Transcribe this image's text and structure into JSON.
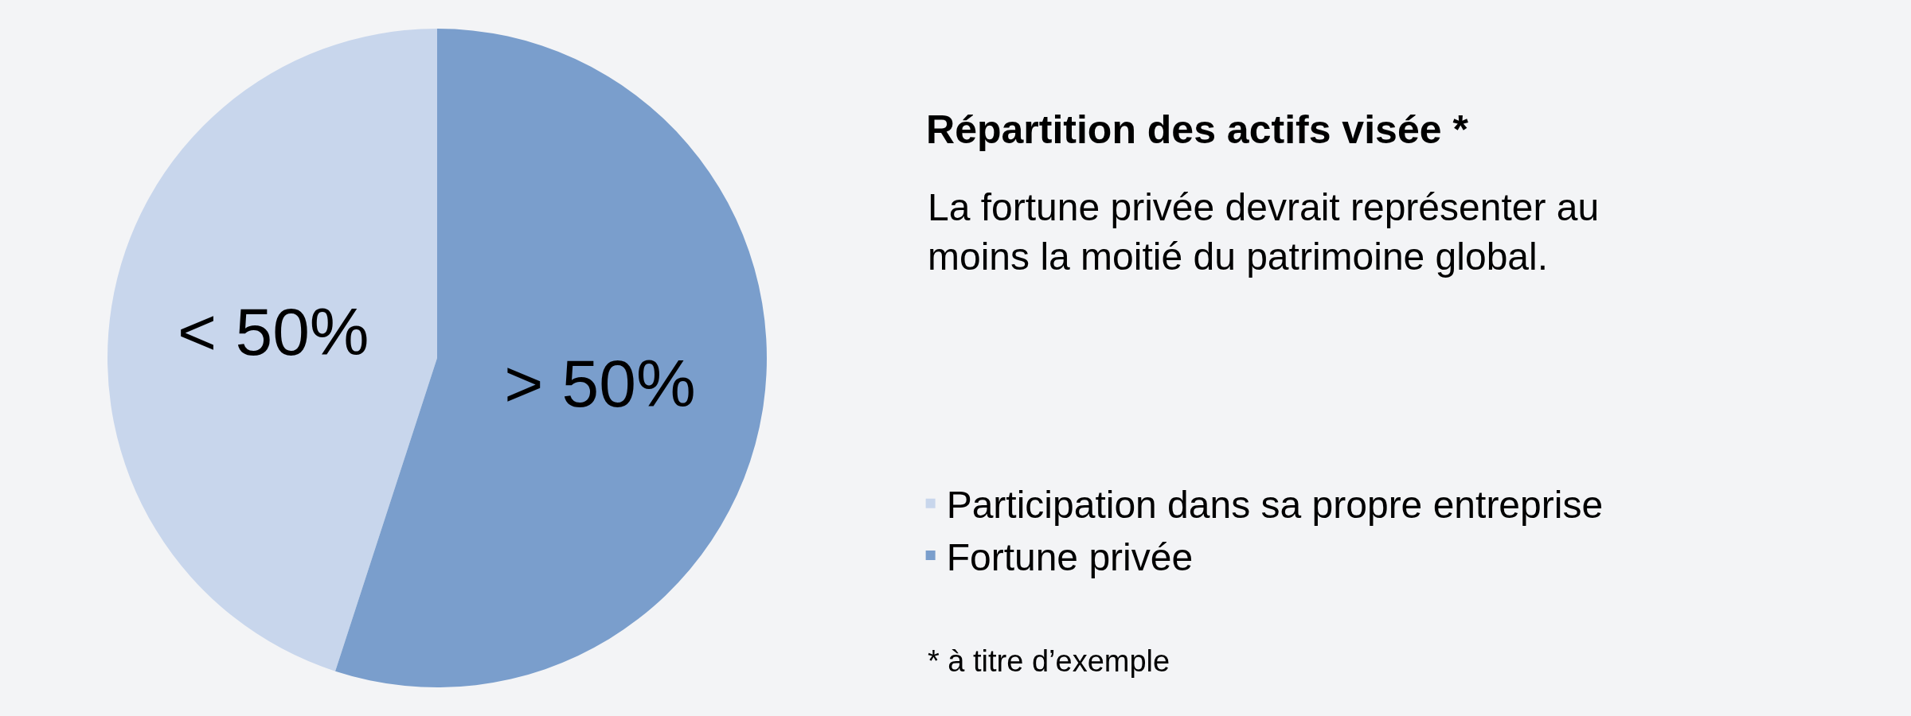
{
  "chart_data": {
    "type": "pie",
    "title": "Répartition des actifs visée *",
    "subtitle": "La fortune privée devrait représenter au moins la moitié du patrimoine global.",
    "categories": [
      "Participation dans sa propre entreprise",
      "Fortune privée"
    ],
    "values": [
      45,
      55
    ],
    "colors": [
      "#c8d6ec",
      "#7a9ecc"
    ],
    "value_labels": [
      "< 50%",
      "> 50%"
    ],
    "legend": "right",
    "annotations": [
      "* à titre d’exemple"
    ]
  }
}
